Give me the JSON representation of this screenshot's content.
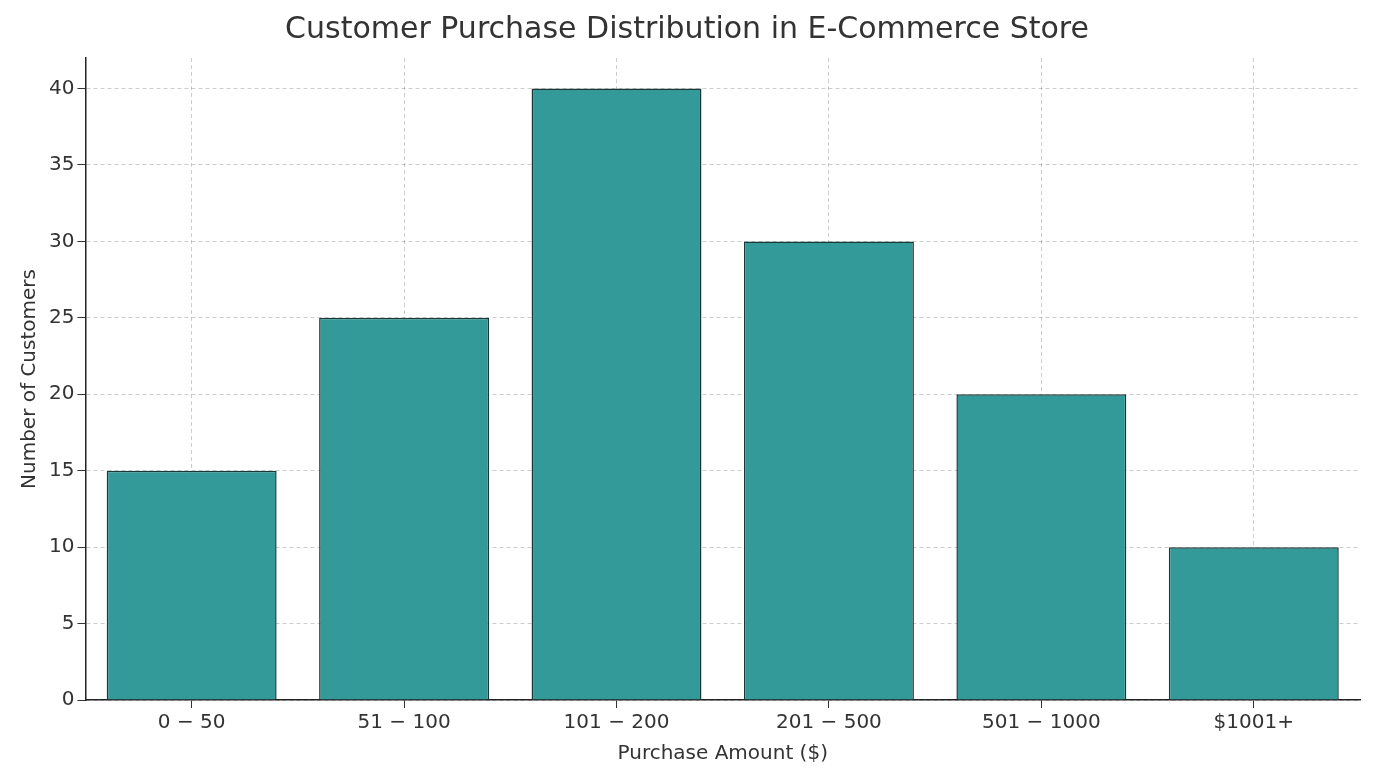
{
  "chart_data": {
    "type": "bar",
    "title": "Customer Purchase Distribution in E-Commerce Store",
    "x_label": "Purchase Amount ($)",
    "y_label": "Number of Customers",
    "categories": [
      "0 − 50",
      "51 − 100",
      "101 − 200",
      "201 − 500",
      "501 − 1000",
      "$1001+"
    ],
    "values": [
      15,
      25,
      40,
      30,
      20,
      10
    ],
    "color": "#339999",
    "ylim": [
      0,
      42
    ],
    "yticks": [
      0,
      5,
      10,
      15,
      20,
      25,
      30,
      35,
      40
    ],
    "grid": true
  }
}
